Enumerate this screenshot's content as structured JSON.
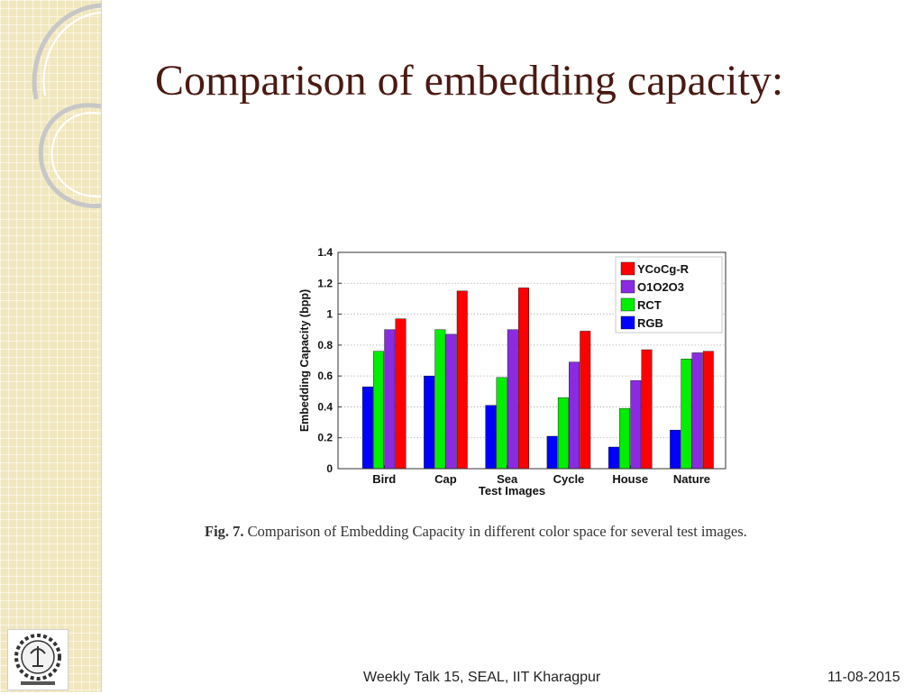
{
  "slide": {
    "title": "Comparison of embedding capacity:",
    "caption_label": "Fig. 7.",
    "caption_text": "Comparison of Embedding Capacity in different color space for several test images.",
    "footer_center": "Weekly Talk 15, SEAL, IIT Kharagpur",
    "footer_right": "11-08-2015"
  },
  "chart_data": {
    "type": "bar",
    "title": "",
    "xlabel": "Test Images",
    "ylabel": "Embedding Capacity (bpp)",
    "ylim": [
      0,
      1.4
    ],
    "yticks": [
      0,
      0.2,
      0.4,
      0.6,
      0.8,
      1,
      1.2,
      1.4
    ],
    "ytick_labels": [
      "0",
      "0.2",
      "0.4",
      "0.6",
      "0.8",
      "1",
      "1.2",
      "1.4"
    ],
    "grid": true,
    "legend_position": "top-right",
    "categories": [
      "Bird",
      "Cap",
      "Sea",
      "Cycle",
      "House",
      "Nature"
    ],
    "series": [
      {
        "name": "RGB",
        "color": "#0000ff",
        "values": [
          0.53,
          0.6,
          0.41,
          0.21,
          0.14,
          0.25
        ]
      },
      {
        "name": "RCT",
        "color": "#00ee00",
        "values": [
          0.76,
          0.9,
          0.59,
          0.46,
          0.39,
          0.71
        ]
      },
      {
        "name": "O1O2O3",
        "color": "#8a2be2",
        "values": [
          0.9,
          0.87,
          0.9,
          0.69,
          0.57,
          0.75
        ]
      },
      {
        "name": "YCoCg-R",
        "color": "#ff0000",
        "values": [
          0.97,
          1.15,
          1.17,
          0.89,
          0.77,
          0.76
        ]
      }
    ],
    "legend_order": [
      "YCoCg-R",
      "O1O2O3",
      "RCT",
      "RGB"
    ]
  }
}
